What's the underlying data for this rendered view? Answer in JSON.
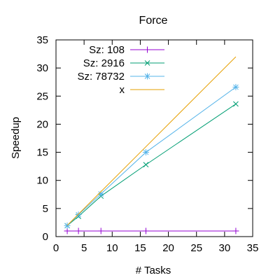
{
  "chart_data": {
    "type": "line",
    "title": "Force",
    "xlabel": "# Tasks",
    "ylabel": "Speedup",
    "xlim": [
      0,
      35
    ],
    "ylim": [
      0,
      35
    ],
    "xticks": [
      0,
      5,
      10,
      15,
      20,
      25,
      30,
      35
    ],
    "yticks": [
      0,
      5,
      10,
      15,
      20,
      25,
      30,
      35
    ],
    "grid": false,
    "legend_position": "top-left",
    "series": [
      {
        "name": "Sz: 108",
        "color": "#9400D3",
        "marker": "plus",
        "x": [
          2,
          4,
          8,
          16,
          32
        ],
        "y": [
          1.0,
          1.0,
          1.0,
          1.0,
          1.0
        ]
      },
      {
        "name": "Sz: 2916",
        "color": "#009E73",
        "marker": "cross",
        "x": [
          2,
          4,
          8,
          16,
          32
        ],
        "y": [
          1.95,
          3.6,
          7.2,
          12.8,
          23.6
        ]
      },
      {
        "name": "Sz: 78732",
        "color": "#56B4E9",
        "marker": "star",
        "x": [
          2,
          4,
          8,
          16,
          32
        ],
        "y": [
          1.95,
          3.9,
          7.6,
          15.0,
          26.6
        ]
      },
      {
        "name": "x",
        "color": "#E69F00",
        "marker": "none",
        "x": [
          2,
          4,
          8,
          16,
          32
        ],
        "y": [
          2,
          4,
          8,
          16,
          32
        ]
      }
    ]
  }
}
